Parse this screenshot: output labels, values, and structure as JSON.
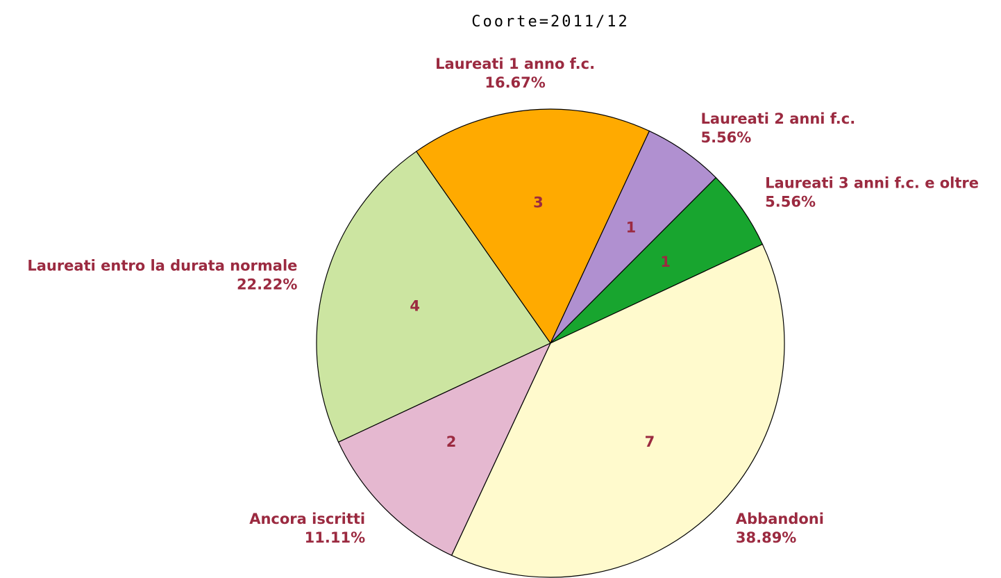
{
  "chart_data": {
    "type": "pie",
    "title": "Coorte=2011/12",
    "categories": [
      "Laureati entro la durata normale",
      "Laureati 1 anno f.c.",
      "Laureati 2 anni f.c.",
      "Laureati 3 anni f.c. e oltre",
      "Abbandoni",
      "Ancora iscritti"
    ],
    "values": [
      4,
      3,
      1,
      1,
      7,
      2
    ],
    "percent_labels": [
      "22.22%",
      "16.67%",
      "5.56%",
      "5.56%",
      "38.89%",
      "11.11%"
    ],
    "colors": [
      "#cce5a1",
      "#ffaa00",
      "#b090d0",
      "#18a52f",
      "#fffacd",
      "#e5b8d0"
    ],
    "label_color": "#9b2a40"
  }
}
